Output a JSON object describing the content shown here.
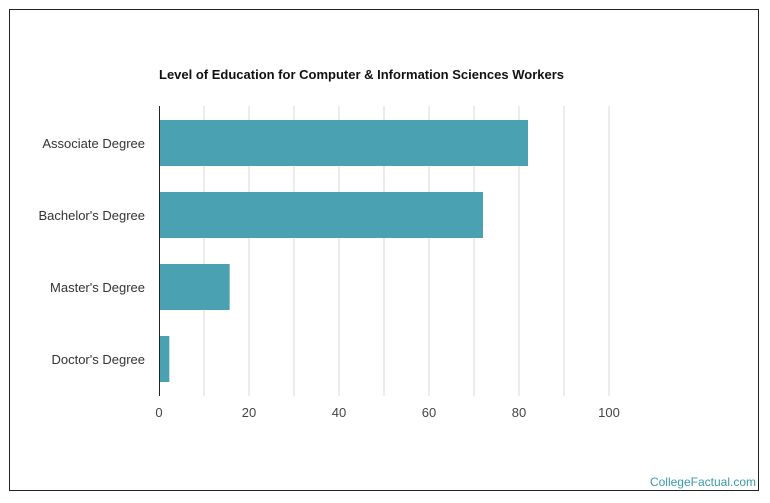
{
  "colors": {
    "bar": "#4aa1b1",
    "grid": "#d9d9d9",
    "axis": "#222222",
    "watermark": "#3a99a8"
  },
  "chart_data": {
    "type": "bar",
    "orientation": "horizontal",
    "title": "Level of Education for Computer & Information Sciences Workers",
    "xlabel": "",
    "ylabel": "",
    "categories": [
      "Associate Degree",
      "Bachelor's Degree",
      "Master's Degree",
      "Doctor's Degree"
    ],
    "values": [
      82,
      72,
      15.7,
      2.3
    ],
    "xlim": [
      0,
      100
    ],
    "xticks": [
      0,
      20,
      40,
      60,
      80,
      100
    ],
    "grid": "vertical",
    "legend": "none"
  },
  "watermark": "CollegeFactual.com"
}
